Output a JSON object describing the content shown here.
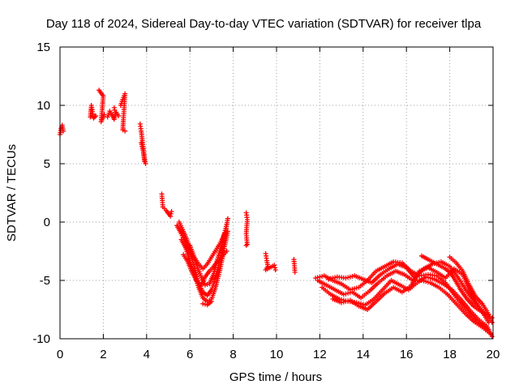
{
  "chart_data": {
    "type": "scatter",
    "title": "Day 118 of 2024, Sidereal Day-to-day VTEC variation (SDTVAR) for receiver tlpa",
    "xlabel": "GPS time / hours",
    "ylabel": "SDTVAR / TECUs",
    "xlim": [
      0,
      20
    ],
    "ylim": [
      -10,
      15
    ],
    "xticks": [
      0,
      2,
      4,
      6,
      8,
      10,
      12,
      14,
      16,
      18,
      20
    ],
    "yticks": [
      -10,
      -5,
      0,
      5,
      10,
      15
    ],
    "grid": true,
    "marker": "plus",
    "color": "#ff0000",
    "series": [
      {
        "name": "SDTVAR",
        "traces": [
          [
            [
              0.0,
              7.5
            ],
            [
              0.05,
              8.0
            ],
            [
              0.1,
              8.3
            ],
            [
              0.15,
              7.8
            ]
          ],
          [
            [
              1.4,
              9.0
            ],
            [
              1.45,
              10.0
            ],
            [
              1.55,
              8.9
            ],
            [
              1.65,
              9.1
            ]
          ],
          [
            [
              1.8,
              11.3
            ],
            [
              2.0,
              10.8
            ],
            [
              1.9,
              8.6
            ],
            [
              2.05,
              9.2
            ]
          ],
          [
            [
              2.2,
              9.0
            ],
            [
              2.3,
              9.5
            ],
            [
              2.4,
              9.2
            ],
            [
              2.5,
              8.8
            ],
            [
              2.6,
              9.4
            ],
            [
              2.7,
              9.1
            ]
          ],
          [
            [
              2.5,
              9.8
            ],
            [
              2.55,
              9.4
            ]
          ],
          [
            [
              2.8,
              10.0
            ],
            [
              2.9,
              10.5
            ],
            [
              3.0,
              11.0
            ],
            [
              2.9,
              7.9
            ],
            [
              3.0,
              7.8
            ]
          ],
          [
            [
              3.7,
              8.4
            ],
            [
              3.75,
              7.8
            ],
            [
              3.8,
              7.0
            ],
            [
              3.85,
              6.3
            ],
            [
              3.9,
              5.5
            ],
            [
              3.95,
              5.0
            ]
          ],
          [
            [
              3.75,
              6.8
            ],
            [
              3.85,
              6.0
            ],
            [
              3.9,
              5.2
            ]
          ],
          [
            [
              4.7,
              2.4
            ],
            [
              4.75,
              1.3
            ],
            [
              4.9,
              1.0
            ],
            [
              5.1,
              0.5
            ],
            [
              5.15,
              0.9
            ]
          ],
          [
            [
              5.4,
              -0.3
            ],
            [
              5.6,
              -1.0
            ],
            [
              5.8,
              -1.8
            ],
            [
              6.0,
              -2.6
            ],
            [
              6.2,
              -3.8
            ],
            [
              6.4,
              -5.2
            ],
            [
              6.6,
              -6.0
            ],
            [
              6.8,
              -6.3
            ],
            [
              7.0,
              -5.8
            ],
            [
              7.2,
              -4.6
            ],
            [
              7.4,
              -3.2
            ],
            [
              7.6,
              -1.4
            ],
            [
              7.75,
              0.3
            ]
          ],
          [
            [
              5.5,
              0.0
            ],
            [
              5.7,
              -0.8
            ],
            [
              5.9,
              -1.7
            ],
            [
              6.1,
              -2.8
            ],
            [
              6.3,
              -3.6
            ],
            [
              6.5,
              -4.6
            ],
            [
              6.7,
              -5.4
            ],
            [
              6.9,
              -5.3
            ],
            [
              7.1,
              -4.4
            ],
            [
              7.3,
              -3.0
            ],
            [
              7.5,
              -1.6
            ],
            [
              7.7,
              -0.2
            ]
          ],
          [
            [
              5.6,
              -1.5
            ],
            [
              5.8,
              -2.2
            ],
            [
              6.0,
              -3.3
            ],
            [
              6.2,
              -4.4
            ],
            [
              6.4,
              -5.6
            ],
            [
              6.6,
              -6.5
            ],
            [
              6.8,
              -6.8
            ],
            [
              7.0,
              -6.6
            ],
            [
              7.2,
              -5.5
            ],
            [
              7.4,
              -4.0
            ],
            [
              7.6,
              -2.1
            ],
            [
              7.75,
              -0.8
            ]
          ],
          [
            [
              5.7,
              -2.8
            ],
            [
              5.9,
              -3.4
            ],
            [
              6.1,
              -4.3
            ],
            [
              6.3,
              -5.0
            ],
            [
              6.5,
              -5.5
            ],
            [
              6.7,
              -4.7
            ],
            [
              6.9,
              -4.2
            ],
            [
              7.1,
              -3.8
            ],
            [
              7.3,
              -3.3
            ],
            [
              7.5,
              -2.9
            ],
            [
              7.7,
              -2.5
            ]
          ],
          [
            [
              6.0,
              -2.0
            ],
            [
              6.2,
              -3.0
            ],
            [
              6.4,
              -3.6
            ],
            [
              6.6,
              -4.0
            ],
            [
              6.8,
              -3.6
            ],
            [
              7.0,
              -3.0
            ],
            [
              7.2,
              -2.4
            ],
            [
              7.4,
              -1.8
            ],
            [
              7.6,
              -1.0
            ]
          ],
          [
            [
              6.6,
              -7.0
            ],
            [
              6.8,
              -7.1
            ],
            [
              7.0,
              -6.8
            ]
          ],
          [
            [
              8.6,
              0.8
            ],
            [
              8.65,
              0.2
            ],
            [
              8.6,
              -1.0
            ],
            [
              8.65,
              -1.9
            ],
            [
              8.6,
              -2.0
            ]
          ],
          [
            [
              9.5,
              -2.7
            ],
            [
              9.55,
              -3.3
            ],
            [
              9.6,
              -3.8
            ],
            [
              9.5,
              -4.1
            ],
            [
              9.9,
              -3.7
            ],
            [
              9.95,
              -4.1
            ]
          ],
          [
            [
              10.8,
              -3.2
            ],
            [
              10.85,
              -4.3
            ]
          ],
          [
            [
              11.8,
              -4.8
            ],
            [
              12.2,
              -4.6
            ],
            [
              12.6,
              -5.0
            ],
            [
              13.0,
              -5.3
            ],
            [
              13.4,
              -5.8
            ],
            [
              13.8,
              -5.6
            ],
            [
              14.2,
              -5.0
            ],
            [
              14.6,
              -4.2
            ],
            [
              15.0,
              -3.8
            ],
            [
              15.4,
              -3.4
            ],
            [
              15.8,
              -3.5
            ],
            [
              16.2,
              -4.2
            ],
            [
              16.6,
              -4.6
            ],
            [
              17.0,
              -4.5
            ],
            [
              17.4,
              -4.6
            ],
            [
              17.8,
              -5.2
            ],
            [
              18.2,
              -6.2
            ],
            [
              18.6,
              -7.2
            ],
            [
              19.0,
              -8.0
            ],
            [
              19.4,
              -8.7
            ],
            [
              19.8,
              -9.2
            ]
          ],
          [
            [
              11.9,
              -5.0
            ],
            [
              12.3,
              -5.4
            ],
            [
              12.7,
              -5.8
            ],
            [
              13.1,
              -6.2
            ],
            [
              13.5,
              -6.0
            ],
            [
              13.9,
              -6.5
            ],
            [
              14.3,
              -5.9
            ],
            [
              14.7,
              -5.2
            ],
            [
              15.1,
              -4.6
            ],
            [
              15.5,
              -4.2
            ],
            [
              15.9,
              -4.5
            ],
            [
              16.3,
              -5.0
            ],
            [
              16.7,
              -5.0
            ],
            [
              17.1,
              -5.2
            ],
            [
              17.5,
              -5.6
            ],
            [
              17.9,
              -6.2
            ],
            [
              18.3,
              -7.0
            ],
            [
              18.7,
              -7.8
            ],
            [
              19.1,
              -8.5
            ],
            [
              19.5,
              -9.0
            ],
            [
              19.9,
              -9.6
            ]
          ],
          [
            [
              12.1,
              -5.6
            ],
            [
              12.5,
              -6.2
            ],
            [
              12.9,
              -6.6
            ],
            [
              13.3,
              -6.8
            ],
            [
              13.7,
              -6.9
            ],
            [
              14.1,
              -7.1
            ],
            [
              14.5,
              -6.6
            ],
            [
              14.9,
              -5.8
            ],
            [
              15.3,
              -5.0
            ],
            [
              15.7,
              -5.4
            ],
            [
              16.1,
              -5.8
            ],
            [
              16.5,
              -5.2
            ],
            [
              16.9,
              -4.7
            ],
            [
              17.3,
              -4.9
            ],
            [
              17.7,
              -5.3
            ],
            [
              18.1,
              -5.8
            ],
            [
              18.5,
              -6.6
            ],
            [
              18.9,
              -7.5
            ],
            [
              19.3,
              -8.3
            ],
            [
              19.7,
              -8.9
            ],
            [
              19.95,
              -9.8
            ]
          ],
          [
            [
              12.4,
              -4.9
            ],
            [
              12.8,
              -4.7
            ],
            [
              13.2,
              -4.8
            ],
            [
              13.6,
              -4.6
            ],
            [
              14.0,
              -4.9
            ],
            [
              14.4,
              -5.2
            ],
            [
              14.8,
              -4.5
            ],
            [
              15.2,
              -4.0
            ],
            [
              15.6,
              -3.6
            ],
            [
              16.0,
              -3.9
            ],
            [
              16.4,
              -4.8
            ],
            [
              16.8,
              -4.0
            ],
            [
              17.2,
              -3.6
            ],
            [
              17.6,
              -3.4
            ],
            [
              18.0,
              -3.8
            ],
            [
              18.4,
              -4.8
            ],
            [
              18.8,
              -6.0
            ],
            [
              19.2,
              -7.0
            ],
            [
              19.6,
              -7.8
            ],
            [
              19.95,
              -8.2
            ]
          ],
          [
            [
              12.6,
              -6.6
            ],
            [
              13.0,
              -6.9
            ],
            [
              13.4,
              -6.7
            ],
            [
              13.8,
              -7.2
            ],
            [
              14.2,
              -7.5
            ],
            [
              14.6,
              -6.8
            ],
            [
              15.0,
              -6.1
            ],
            [
              15.4,
              -5.6
            ],
            [
              15.8,
              -6.0
            ],
            [
              16.2,
              -5.5
            ],
            [
              16.6,
              -4.2
            ],
            [
              17.0,
              -3.9
            ],
            [
              17.4,
              -4.3
            ],
            [
              17.8,
              -4.8
            ],
            [
              18.2,
              -4.0
            ],
            [
              18.6,
              -4.5
            ],
            [
              19.0,
              -6.2
            ],
            [
              19.4,
              -7.4
            ],
            [
              19.8,
              -8.6
            ]
          ],
          [
            [
              16.7,
              -2.9
            ],
            [
              17.0,
              -3.2
            ],
            [
              17.4,
              -3.6
            ],
            [
              17.8,
              -4.0
            ],
            [
              18.0,
              -4.3
            ],
            [
              18.2,
              -4.8
            ],
            [
              18.5,
              -5.8
            ],
            [
              18.8,
              -6.6
            ],
            [
              19.1,
              -7.2
            ],
            [
              19.4,
              -7.6
            ],
            [
              19.7,
              -8.0
            ],
            [
              19.95,
              -8.6
            ]
          ],
          [
            [
              18.0,
              -3.0
            ],
            [
              18.3,
              -3.5
            ],
            [
              18.6,
              -4.2
            ],
            [
              18.9,
              -5.4
            ],
            [
              19.2,
              -6.4
            ],
            [
              19.5,
              -7.0
            ],
            [
              19.8,
              -7.9
            ]
          ]
        ]
      }
    ]
  }
}
